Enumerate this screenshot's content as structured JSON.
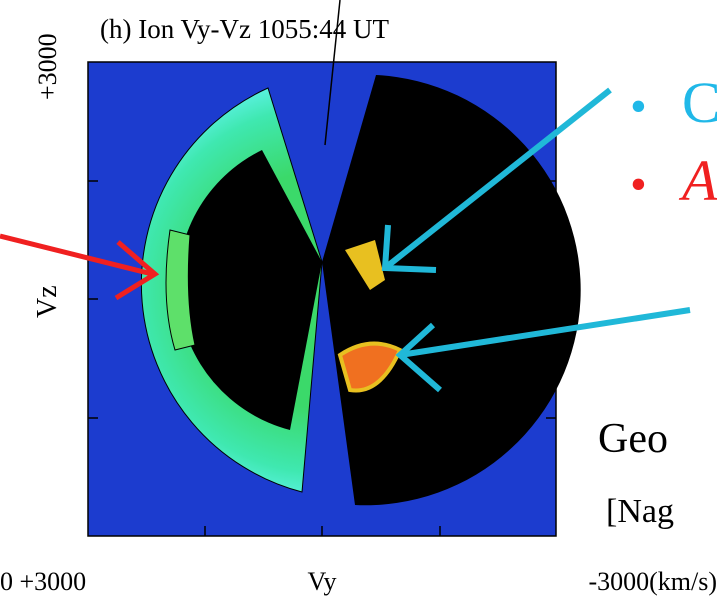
{
  "panel": {
    "title": "(h) Ion Vy-Vz 1055:44 UT",
    "y_axis_top": "+3000",
    "y_axis_label": "Vz",
    "x_axis_left": "0 +3000",
    "x_axis_label": "Vy",
    "x_axis_right": "-3000(km/s)"
  },
  "bullets": [
    {
      "marker": "•",
      "text": "C"
    },
    {
      "marker": "•",
      "text": "A"
    }
  ],
  "side_text": [
    "Geo",
    "[Nag"
  ]
}
